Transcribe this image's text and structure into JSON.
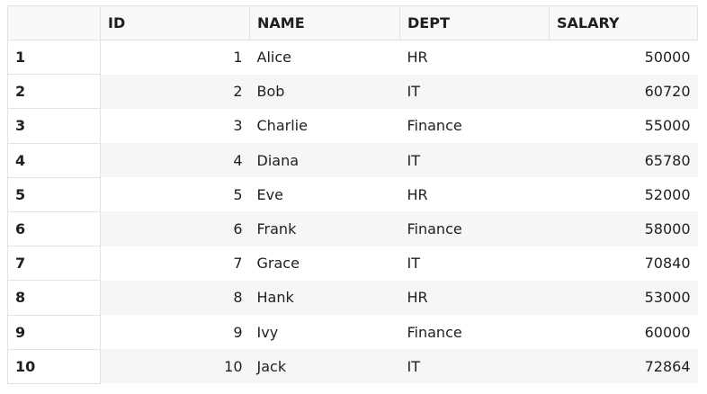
{
  "table": {
    "headers": [
      "",
      "ID",
      "NAME",
      "DEPT",
      "SALARY"
    ],
    "rows": [
      {
        "rownum": "1",
        "id": "1",
        "name": "Alice",
        "dept": "HR",
        "salary": "50000"
      },
      {
        "rownum": "2",
        "id": "2",
        "name": "Bob",
        "dept": "IT",
        "salary": "60720"
      },
      {
        "rownum": "3",
        "id": "3",
        "name": "Charlie",
        "dept": "Finance",
        "salary": "55000"
      },
      {
        "rownum": "4",
        "id": "4",
        "name": "Diana",
        "dept": "IT",
        "salary": "65780"
      },
      {
        "rownum": "5",
        "id": "5",
        "name": "Eve",
        "dept": "HR",
        "salary": "52000"
      },
      {
        "rownum": "6",
        "id": "6",
        "name": "Frank",
        "dept": "Finance",
        "salary": "58000"
      },
      {
        "rownum": "7",
        "id": "7",
        "name": "Grace",
        "dept": "IT",
        "salary": "70840"
      },
      {
        "rownum": "8",
        "id": "8",
        "name": "Hank",
        "dept": "HR",
        "salary": "53000"
      },
      {
        "rownum": "9",
        "id": "9",
        "name": "Ivy",
        "dept": "Finance",
        "salary": "60000"
      },
      {
        "rownum": "10",
        "id": "10",
        "name": "Jack",
        "dept": "IT",
        "salary": "72864"
      }
    ]
  }
}
